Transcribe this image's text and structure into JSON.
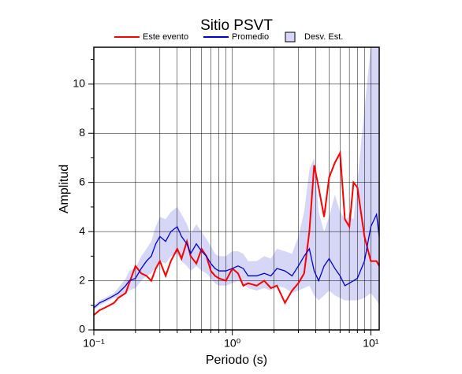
{
  "chart_data": {
    "type": "line",
    "title": "Sitio PSVT",
    "xlabel": "Periodo (s)",
    "ylabel": "Amplitud",
    "xscale": "log",
    "xlim": [
      0.1,
      11.5
    ],
    "ylim": [
      0,
      11.5
    ],
    "xticks": [
      {
        "value": 0.1,
        "label": "10⁻¹"
      },
      {
        "value": 1,
        "label": "10⁰"
      },
      {
        "value": 10,
        "label": "10¹"
      }
    ],
    "xminorticks": [
      0.2,
      0.3,
      0.4,
      0.5,
      0.6,
      0.7,
      0.8,
      0.9,
      2,
      3,
      4,
      5,
      6,
      7,
      8,
      9
    ],
    "yticks": [
      0,
      2,
      4,
      6,
      8,
      10
    ],
    "yminorticks": [
      1,
      3,
      5,
      7,
      9,
      11
    ],
    "grid": true,
    "x": [
      0.1,
      0.11,
      0.12,
      0.13,
      0.14,
      0.15,
      0.17,
      0.18,
      0.2,
      0.22,
      0.24,
      0.26,
      0.28,
      0.3,
      0.33,
      0.36,
      0.4,
      0.43,
      0.47,
      0.5,
      0.55,
      0.6,
      0.65,
      0.7,
      0.75,
      0.8,
      0.9,
      1.0,
      1.1,
      1.2,
      1.3,
      1.5,
      1.7,
      1.9,
      2.1,
      2.4,
      2.7,
      3.0,
      3.3,
      3.6,
      3.9,
      4.2,
      4.6,
      5.0,
      5.5,
      6.0,
      6.5,
      7.0,
      7.5,
      8.0,
      9.0,
      10.0,
      11.0,
      11.5
    ],
    "band": {
      "name": "Desv. Est.",
      "color": "#d6d6f7",
      "lower": [
        0.8,
        1.0,
        1.1,
        1.2,
        1.3,
        1.3,
        1.5,
        1.6,
        1.7,
        2.0,
        2.2,
        2.3,
        2.6,
        2.8,
        2.7,
        3.0,
        3.1,
        2.8,
        2.6,
        2.4,
        2.6,
        2.4,
        2.3,
        2.1,
        1.9,
        1.8,
        1.8,
        1.9,
        2.0,
        1.9,
        1.7,
        1.6,
        1.7,
        1.6,
        1.8,
        1.7,
        1.5,
        1.6,
        1.7,
        1.8,
        1.4,
        1.2,
        1.4,
        1.6,
        1.4,
        1.3,
        1.2,
        1.2,
        1.2,
        1.2,
        1.3,
        1.5,
        1.2,
        1.0
      ],
      "upper": [
        1.0,
        1.2,
        1.3,
        1.4,
        1.5,
        1.7,
        2.1,
        2.4,
        2.5,
        3.0,
        3.3,
        3.6,
        4.2,
        4.6,
        4.5,
        4.8,
        5.0,
        4.7,
        4.3,
        3.9,
        4.3,
        4.0,
        3.7,
        3.4,
        3.1,
        3.0,
        3.0,
        3.2,
        3.2,
        3.1,
        2.8,
        2.8,
        3.0,
        2.9,
        3.3,
        3.2,
        3.1,
        3.8,
        4.8,
        6.5,
        7.0,
        4.8,
        4.0,
        4.6,
        5.5,
        4.8,
        4.5,
        4.6,
        4.5,
        6.0,
        9.0,
        11.5,
        11.5,
        11.5
      ]
    },
    "series": [
      {
        "name": "Este evento",
        "color": "#ff0000",
        "values": [
          0.6,
          0.8,
          0.9,
          1.0,
          1.1,
          1.3,
          1.5,
          1.9,
          2.6,
          2.3,
          2.2,
          2.0,
          2.5,
          2.8,
          2.2,
          2.8,
          3.3,
          2.9,
          3.6,
          3.0,
          2.7,
          3.3,
          3.0,
          2.4,
          2.2,
          2.1,
          2.0,
          2.5,
          2.3,
          1.8,
          1.9,
          1.8,
          2.0,
          1.7,
          1.8,
          1.1,
          1.6,
          1.9,
          2.3,
          4.0,
          6.7,
          5.8,
          4.6,
          6.2,
          6.8,
          7.2,
          4.5,
          4.2,
          6.0,
          5.8,
          3.8,
          2.8,
          2.8,
          2.6
        ]
      },
      {
        "name": "Promedio",
        "color": "#0000dd",
        "values": [
          0.9,
          1.1,
          1.2,
          1.3,
          1.4,
          1.5,
          1.8,
          2.0,
          2.1,
          2.5,
          2.8,
          3.0,
          3.5,
          3.8,
          3.6,
          4.0,
          4.2,
          3.8,
          3.5,
          3.1,
          3.5,
          3.2,
          3.0,
          2.7,
          2.5,
          2.4,
          2.4,
          2.5,
          2.6,
          2.5,
          2.2,
          2.2,
          2.3,
          2.2,
          2.5,
          2.4,
          2.2,
          2.6,
          3.0,
          3.3,
          2.4,
          2.0,
          2.6,
          2.9,
          2.5,
          2.2,
          1.8,
          1.9,
          2.0,
          2.1,
          2.8,
          4.2,
          4.7,
          3.8
        ]
      }
    ]
  }
}
